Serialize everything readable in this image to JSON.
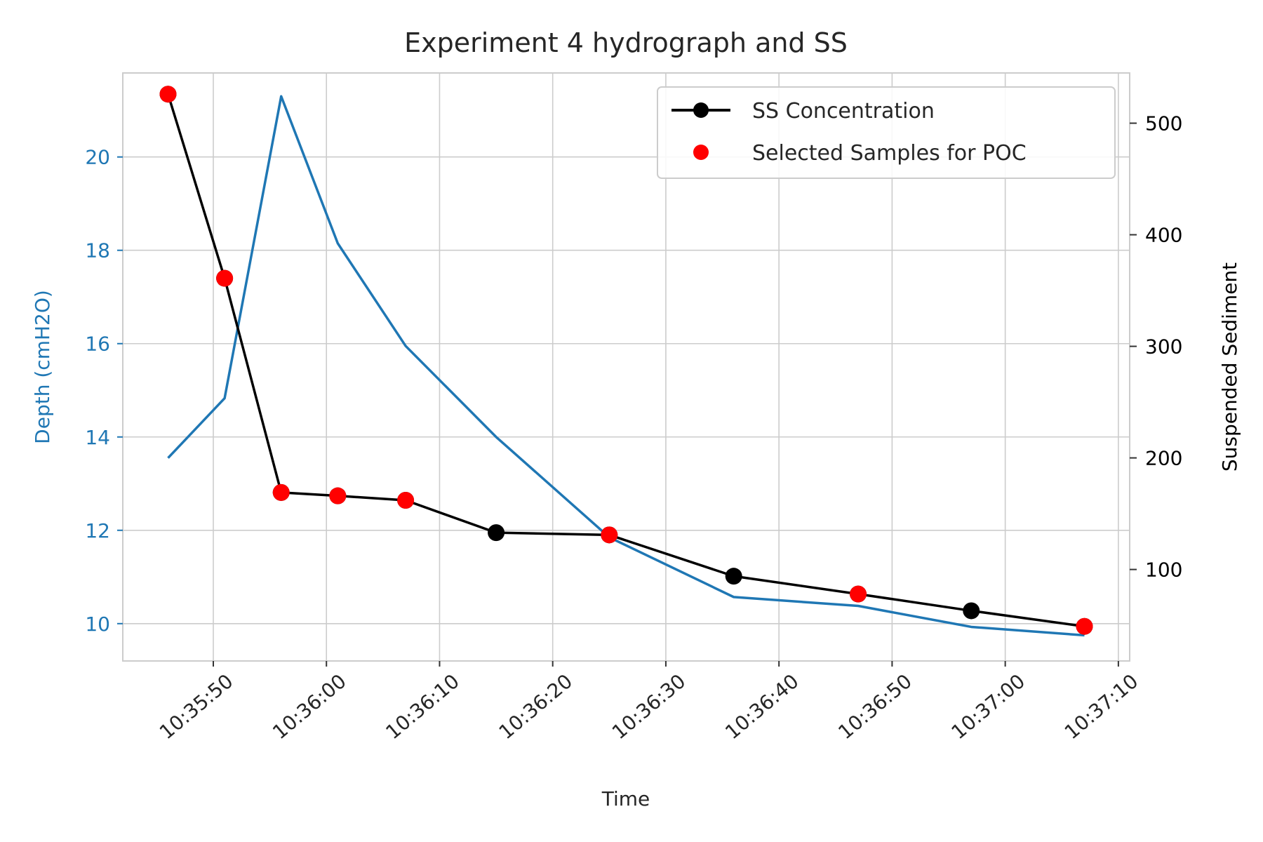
{
  "chart_data": {
    "type": "line",
    "title": "Experiment 4 hydrograph and SS",
    "xlabel": "Time",
    "ylabel_left": "Depth (cmH2O)",
    "ylabel_right": "Suspended Sediment",
    "x_ticks": [
      "10:35:50",
      "10:36:00",
      "10:36:10",
      "10:36:20",
      "10:36:30",
      "10:36:40",
      "10:36:50",
      "10:37:00",
      "10:37:10"
    ],
    "x_range": [
      "10:35:42",
      "10:37:11"
    ],
    "y_left_ticks": [
      10,
      12,
      14,
      16,
      18,
      20
    ],
    "y_left_range": [
      9.2,
      21.8
    ],
    "y_right_ticks": [
      100,
      200,
      300,
      400,
      500
    ],
    "y_right_range": [
      18,
      545
    ],
    "grid": true,
    "legend_position": "top-right",
    "colors": {
      "depth": "#1f77b4",
      "ss": "#000000",
      "selected": "#ff0000",
      "left_axis_text": "#1f77b4",
      "right_axis_text": "#000000"
    },
    "series": [
      {
        "axis": "left",
        "color": "#1f77b4",
        "marker": "none",
        "x": [
          "10:35:46",
          "10:35:51",
          "10:35:56",
          "10:36:01",
          "10:36:07",
          "10:36:15",
          "10:36:25",
          "10:36:36",
          "10:36:47",
          "10:36:57",
          "10:37:07"
        ],
        "y": [
          13.55,
          14.83,
          21.3,
          18.15,
          15.95,
          14.0,
          11.85,
          10.57,
          10.38,
          9.93,
          9.75
        ]
      },
      {
        "name": "SS Concentration",
        "axis": "right",
        "color": "#000000",
        "marker": "circle",
        "x": [
          "10:35:46",
          "10:35:51",
          "10:35:56",
          "10:36:01",
          "10:36:07",
          "10:36:15",
          "10:36:25",
          "10:36:36",
          "10:36:47",
          "10:36:57",
          "10:37:07"
        ],
        "y": [
          526,
          361,
          169,
          166,
          162,
          133,
          131,
          94,
          78,
          63,
          49
        ]
      },
      {
        "name": "Selected Samples for POC",
        "axis": "right",
        "color": "#ff0000",
        "marker": "circle",
        "line": false,
        "x": [
          "10:35:46",
          "10:35:51",
          "10:35:56",
          "10:36:01",
          "10:36:07",
          "10:36:25",
          "10:36:47",
          "10:37:07"
        ],
        "y": [
          526,
          361,
          169,
          166,
          162,
          131,
          78,
          49
        ]
      }
    ]
  }
}
